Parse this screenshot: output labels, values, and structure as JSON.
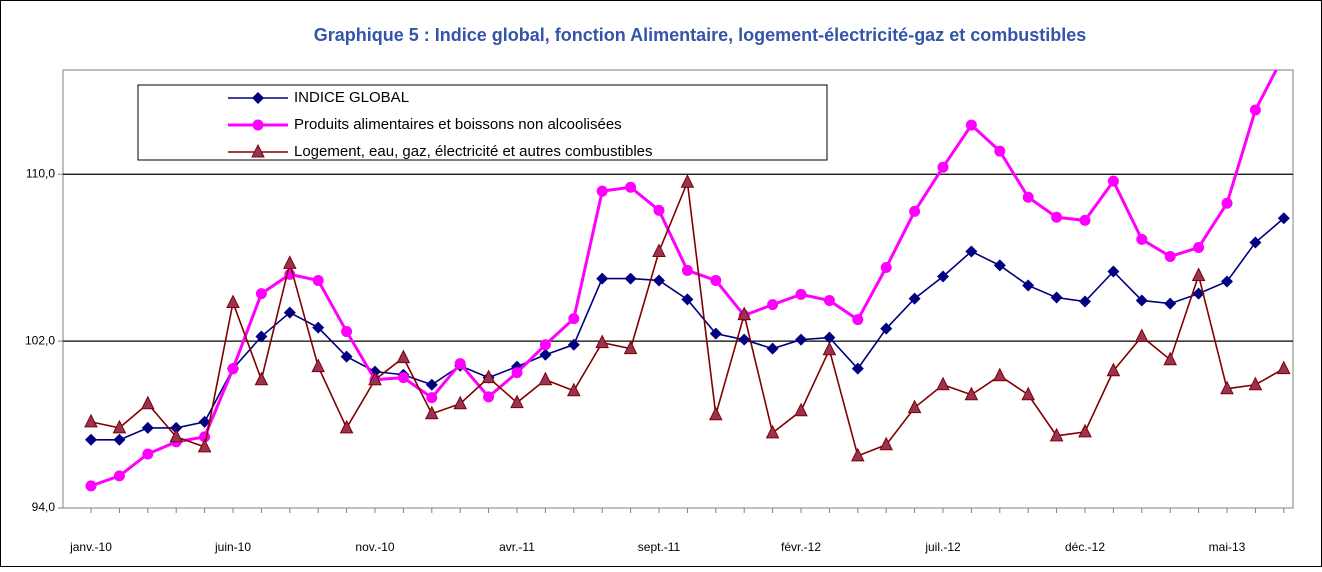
{
  "chart_data": {
    "type": "line",
    "title": "Graphique 5 : Indice global, fonction Alimentaire, logement-électricité-gaz et combustibles",
    "categories": [
      "janv.-10",
      null,
      null,
      null,
      null,
      "juin-10",
      null,
      null,
      null,
      null,
      "nov.-10",
      null,
      null,
      null,
      null,
      "avr.-11",
      null,
      null,
      null,
      null,
      "sept.-11",
      null,
      null,
      null,
      null,
      "févr.-12",
      null,
      null,
      null,
      null,
      "juil.-12",
      null,
      null,
      null,
      null,
      "déc.-12",
      null,
      null,
      null,
      null,
      "mai-13",
      null,
      null
    ],
    "ylim": [
      94,
      115
    ],
    "yticks": [
      {
        "value": 94,
        "label": "94,0"
      },
      {
        "value": 102,
        "label": "102,0"
      },
      {
        "value": 110,
        "label": "110,0"
      }
    ],
    "grid": true,
    "legend": "top-left",
    "series": [
      {
        "name": "INDICE GLOBAL",
        "color": "#000080",
        "marker": "diamond",
        "values": [
          97.27,
          97.27,
          97.84,
          97.84,
          98.13,
          100.68,
          102.22,
          103.37,
          102.65,
          101.26,
          100.54,
          100.39,
          99.91,
          100.82,
          100.25,
          100.78,
          101.35,
          101.83,
          105.0,
          105.0,
          104.91,
          104.0,
          102.36,
          102.07,
          101.64,
          102.07,
          102.17,
          100.68,
          102.6,
          104.04,
          105.1,
          106.3,
          105.63,
          104.67,
          104.09,
          103.9,
          105.34,
          103.95,
          103.8,
          104.28,
          104.86,
          106.73,
          107.89
        ]
      },
      {
        "name": "Produits alimentaires et boissons non alcoolisées",
        "color": "#ff00ff",
        "marker": "circle",
        "values": [
          95.06,
          95.54,
          96.59,
          97.17,
          97.41,
          100.68,
          104.28,
          105.2,
          104.91,
          102.46,
          100.15,
          100.25,
          99.29,
          100.92,
          99.33,
          100.49,
          101.83,
          103.08,
          109.19,
          109.38,
          108.27,
          105.39,
          104.91,
          103.23,
          103.75,
          104.24,
          103.95,
          103.03,
          105.53,
          108.22,
          110.34,
          112.36,
          111.11,
          108.9,
          107.94,
          107.79,
          109.67,
          106.88,
          106.06,
          106.49,
          108.61,
          113.08,
          115.7
        ]
      },
      {
        "name": "Logement, eau, gaz, électricité et autres combustibles",
        "color": "#800000",
        "marker": "triangle",
        "values": [
          98.13,
          97.84,
          99.0,
          97.41,
          96.93,
          103.85,
          100.15,
          105.73,
          100.78,
          97.84,
          100.15,
          101.21,
          98.52,
          99.0,
          100.25,
          99.05,
          100.15,
          99.62,
          101.93,
          101.64,
          106.3,
          109.62,
          98.47,
          103.27,
          97.6,
          98.66,
          101.59,
          96.5,
          97.03,
          98.81,
          99.91,
          99.43,
          100.34,
          99.43,
          97.46,
          97.65,
          100.58,
          102.22,
          101.11,
          105.15,
          99.72,
          99.91,
          100.68
        ]
      }
    ]
  }
}
